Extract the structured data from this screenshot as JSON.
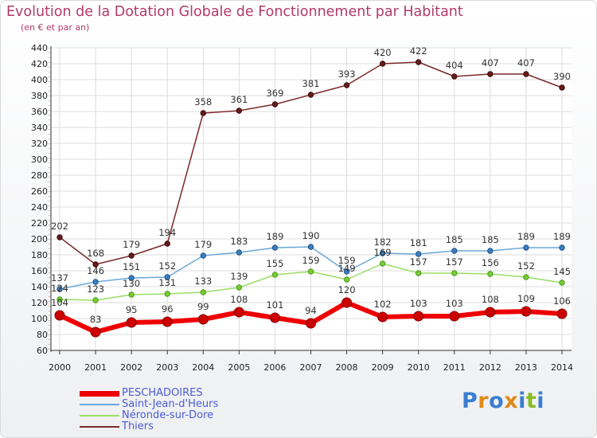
{
  "chart_data": {
    "type": "line",
    "title": "Evolution de la Dotation Globale de Fonctionnement par Habitant",
    "subtitle": "(en € et par an)",
    "x": [
      "2000",
      "2001",
      "2002",
      "2003",
      "2004",
      "2005",
      "2006",
      "2007",
      "2008",
      "2009",
      "2010",
      "2011",
      "2012",
      "2013",
      "2014"
    ],
    "ylim": [
      60,
      440
    ],
    "yticks": [
      60,
      80,
      100,
      120,
      140,
      160,
      180,
      200,
      220,
      240,
      260,
      280,
      300,
      320,
      340,
      360,
      380,
      400,
      420,
      440
    ],
    "grid": true,
    "legend_position": "bottom-left",
    "series": [
      {
        "name": "PESCHADOIRES",
        "color": "#ee0000",
        "values": [
          104,
          83,
          95,
          96,
          99,
          108,
          101,
          94,
          120,
          102,
          103,
          103,
          108,
          109,
          106
        ]
      },
      {
        "name": "Saint-Jean-d'Heurs",
        "color": "#6aa8d8",
        "values": [
          137,
          146,
          151,
          152,
          179,
          183,
          189,
          190,
          159,
          182,
          181,
          185,
          185,
          189,
          189
        ]
      },
      {
        "name": "Néronde-sur-Dore",
        "color": "#99dd66",
        "values": [
          124,
          123,
          130,
          131,
          133,
          139,
          155,
          159,
          149,
          169,
          157,
          157,
          156,
          152,
          145
        ]
      },
      {
        "name": "Thiers",
        "color": "#7a2a2a",
        "values": [
          202,
          168,
          179,
          194,
          358,
          361,
          369,
          381,
          393,
          420,
          422,
          404,
          407,
          407,
          390
        ]
      }
    ]
  },
  "logo": {
    "text": "Proxiti",
    "letters": [
      "P",
      "r",
      "o",
      "x",
      "i",
      "t",
      "i"
    ],
    "colors": [
      "#3a7dd0",
      "#e08a1a",
      "#3a7dd0",
      "#e08a1a",
      "#3a7dd0",
      "#88bb22",
      "#3a7dd0"
    ]
  }
}
